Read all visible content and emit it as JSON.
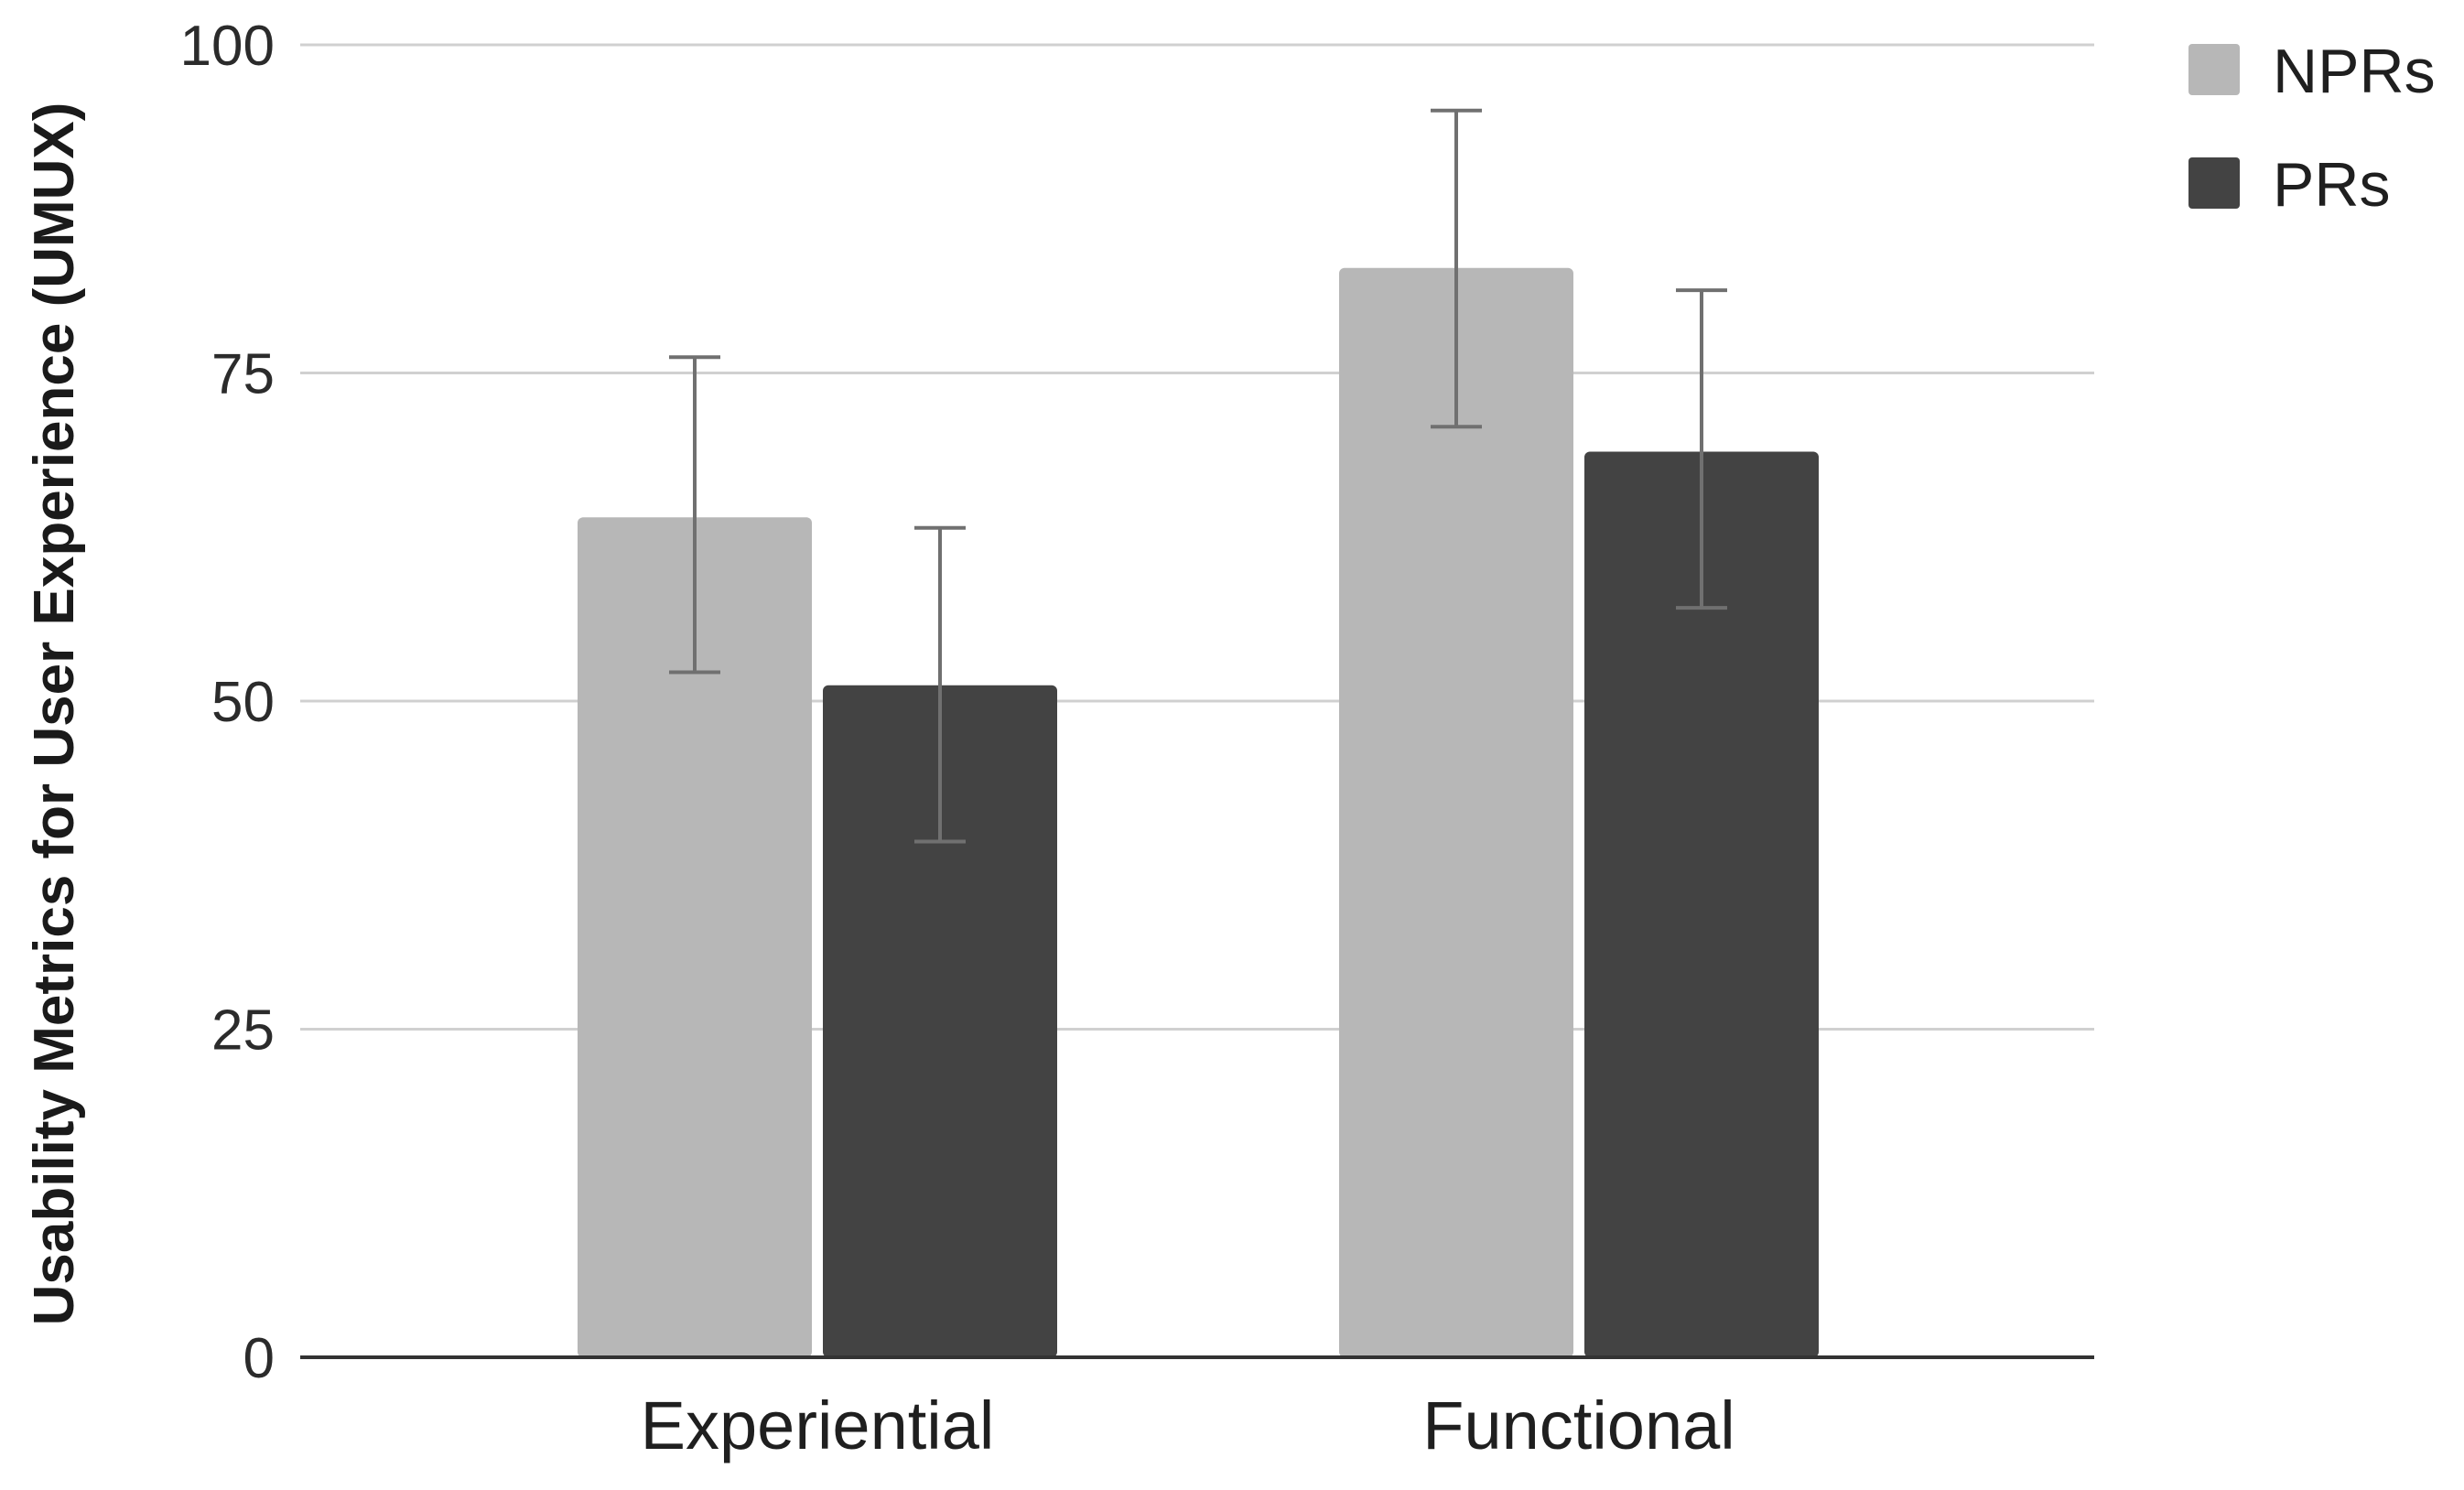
{
  "chart_data": {
    "type": "bar",
    "title": "",
    "xlabel": "",
    "ylabel": "Usability Metrics for User Experience (UMUX)",
    "categories": [
      "Experiential",
      "Functional"
    ],
    "series": [
      {
        "name": "NPRs",
        "color": "#b7b7b7",
        "values": [
          64,
          83
        ],
        "error_low": [
          52.2,
          70.9
        ],
        "error_high": [
          76.2,
          95
        ]
      },
      {
        "name": "PRs",
        "color": "#434343",
        "values": [
          51.2,
          69
        ],
        "error_low": [
          39.3,
          57.1
        ],
        "error_high": [
          63.2,
          81.3
        ]
      }
    ],
    "ylim": [
      0,
      100
    ],
    "yticks": [
      0,
      25,
      50,
      75,
      100
    ],
    "ytick_labels": [
      "0",
      "25",
      "50",
      "75",
      "100"
    ],
    "grid": true,
    "legend_position": "top-right",
    "colors": {
      "gridline": "#d0d0d0",
      "baseline": "#333333",
      "error_bar": "#707070"
    }
  }
}
